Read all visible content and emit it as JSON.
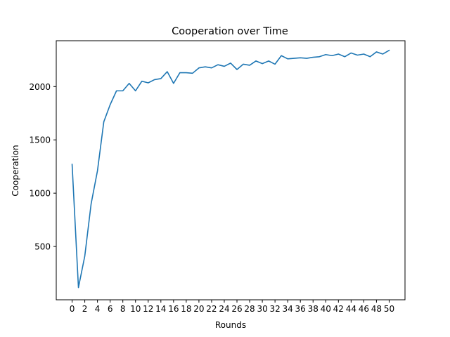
{
  "chart_data": {
    "type": "line",
    "title": "Cooperation over Time",
    "xlabel": "Rounds",
    "ylabel": "Cooperation",
    "xlim": [
      -2.5,
      52.5
    ],
    "ylim": [
      0,
      2430
    ],
    "x_ticks": [
      0,
      2,
      4,
      6,
      8,
      10,
      12,
      14,
      16,
      18,
      20,
      22,
      24,
      26,
      28,
      30,
      32,
      34,
      36,
      38,
      40,
      42,
      44,
      46,
      48,
      50
    ],
    "y_ticks": [
      500,
      1000,
      1500,
      2000
    ],
    "grid": false,
    "legend": "none",
    "line_color": "#1f77b4",
    "series": [
      {
        "x": [
          0,
          1,
          2,
          3,
          4,
          5,
          6,
          7,
          8,
          9,
          10,
          11,
          12,
          13,
          14,
          15,
          16,
          17,
          18,
          19,
          20,
          21,
          22,
          23,
          24,
          25,
          26,
          27,
          28,
          29,
          30,
          31,
          32,
          33,
          34,
          35,
          36,
          37,
          38,
          39,
          40,
          41,
          42,
          43,
          44,
          45,
          46,
          47,
          48,
          49,
          50
        ],
        "values": [
          1270,
          115,
          410,
          900,
          1210,
          1670,
          1830,
          1960,
          1960,
          2030,
          1960,
          2050,
          2035,
          2065,
          2075,
          2140,
          2030,
          2130,
          2130,
          2125,
          2175,
          2185,
          2175,
          2205,
          2190,
          2220,
          2160,
          2210,
          2200,
          2240,
          2215,
          2240,
          2210,
          2290,
          2260,
          2265,
          2270,
          2265,
          2275,
          2280,
          2300,
          2290,
          2305,
          2280,
          2315,
          2295,
          2305,
          2280,
          2325,
          2305,
          2340
        ]
      }
    ]
  }
}
